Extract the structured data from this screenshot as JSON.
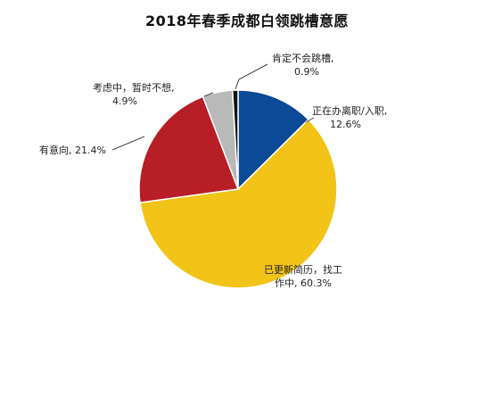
{
  "chart_data": {
    "type": "pie",
    "title": "2018年春季成都白领跳槽意愿",
    "start_angle_deg": 0,
    "direction": "clockwise",
    "slices": [
      {
        "label": "正在办离职/入职",
        "value": 12.6,
        "value_text": "12.6%",
        "color": "#0b4a96"
      },
      {
        "label": "已更新简历，找工作中",
        "value": 60.3,
        "value_text": "60.3%",
        "color": "#f2c417"
      },
      {
        "label": "有意向",
        "value": 21.4,
        "value_text": "21.4%",
        "color": "#b81e25"
      },
      {
        "label": "考虑中，暂时不想",
        "value": 4.9,
        "value_text": "4.9%",
        "color": "#b9b9b9"
      },
      {
        "label": "肯定不会跳槽",
        "value": 0.9,
        "value_text": "0.9%",
        "color": "#111111"
      }
    ],
    "label_lines": [
      [
        "正在办离职/入职,",
        "12.6%"
      ],
      [
        "已更新简历，找工",
        "作中, 60.3%"
      ],
      [
        "有意向, 21.4%"
      ],
      [
        "考虑中，暂时不想,",
        "4.9%"
      ],
      [
        "肯定不会跳槽,",
        "0.9%"
      ]
    ],
    "legend": "none",
    "grid": false
  }
}
